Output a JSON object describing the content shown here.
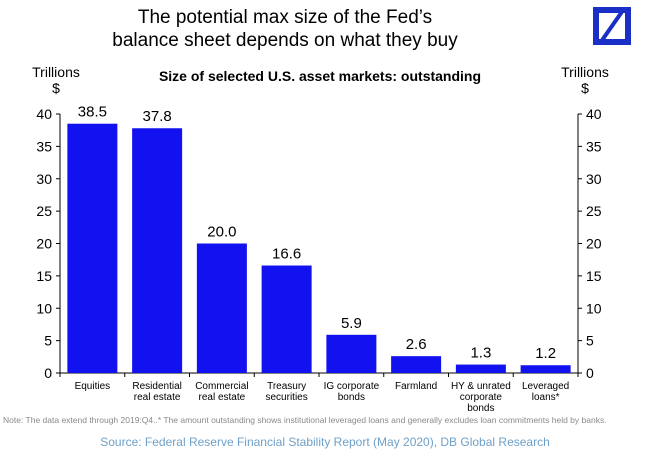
{
  "header": {
    "title_lines": [
      "The potential max size of the Fed’s",
      "balance sheet depends on what they buy"
    ],
    "logo_icon": "deutsche-bank-logo"
  },
  "chart_data": {
    "type": "bar",
    "title": "Size of selected U.S. asset markets: outstanding",
    "ylabel_left": [
      "Trillions",
      "$"
    ],
    "ylabel_right": [
      "Trillions",
      "$"
    ],
    "ylim": [
      0,
      40
    ],
    "yticks": [
      0,
      5,
      10,
      15,
      20,
      25,
      30,
      35,
      40
    ],
    "categories": [
      [
        "Equities"
      ],
      [
        "Residential",
        "real estate"
      ],
      [
        "Commercial",
        "real estate"
      ],
      [
        "Treasury",
        "securities"
      ],
      [
        "IG corporate",
        "bonds"
      ],
      [
        "Farmland"
      ],
      [
        "HY & unrated",
        "corporate",
        "bonds"
      ],
      [
        "Leveraged",
        "loans*"
      ]
    ],
    "values": [
      38.5,
      37.8,
      20.0,
      16.6,
      5.9,
      2.6,
      1.3,
      1.2
    ],
    "value_labels": [
      "38.5",
      "37.8",
      "20.0",
      "16.6",
      "5.9",
      "2.6",
      "1.3",
      "1.2"
    ],
    "bar_color": "#1212f0",
    "grid": false,
    "legend": "none"
  },
  "footer": {
    "note": "Note: The data extend through 2019:Q4..* The amount outstanding shows institutional leveraged loans and generally excludes loan commitments held by banks.",
    "source": "Source: Federal Reserve Financial Stability Report (May 2020), DB Global Research"
  }
}
